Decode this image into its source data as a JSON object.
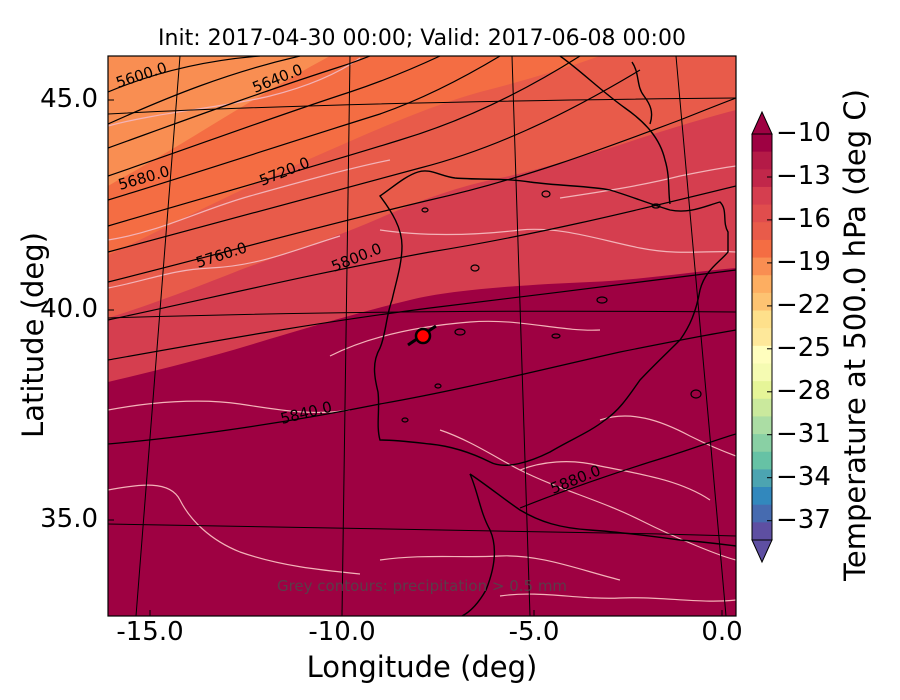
{
  "title": "Init: 2017-04-30 00:00; Valid: 2017-06-08 00:00",
  "xlabel": "Longitude (deg)",
  "ylabel": "Latitude (deg)",
  "x_ticks": [
    "-15.0",
    "-10.0",
    "-5.0",
    "0.0"
  ],
  "y_ticks": [
    "45.0",
    "40.0",
    "35.0"
  ],
  "colorbar": {
    "label": "Temperature at 500.0 hPa (deg C)",
    "ticks": [
      "−10",
      "−13",
      "−16",
      "−19",
      "−22",
      "−25",
      "−28",
      "−31",
      "−34",
      "−37"
    ],
    "colors": [
      "#5e4fa2",
      "#466bb0",
      "#3288bd",
      "#4ca4b1",
      "#66c2a5",
      "#89d0a4",
      "#abdda4",
      "#cae99d",
      "#e6f598",
      "#f5fbb2",
      "#fffebe",
      "#fee89a",
      "#fee08b",
      "#fdc372",
      "#fdae61",
      "#f98e52",
      "#f46d43",
      "#e85b4a",
      "#e04d4d",
      "#d53e4f",
      "#c1274a",
      "#b41a47",
      "#9e0142"
    ]
  },
  "contour_labels": [
    "5600.0",
    "5640.0",
    "5680.0",
    "5720.0",
    "5760.0",
    "5800.0",
    "5840.0",
    "5880.0"
  ],
  "note": "Grey contours: precipitation > 0.5 mm",
  "marker": {
    "lon": -7.6,
    "lat": 39.4,
    "color": "#ff0000"
  },
  "colors": {
    "field_warm": "#9e0142",
    "field_mid": "#d53e4f",
    "field_cool": "#f46d43",
    "field_coolest": "#f98e52"
  }
}
